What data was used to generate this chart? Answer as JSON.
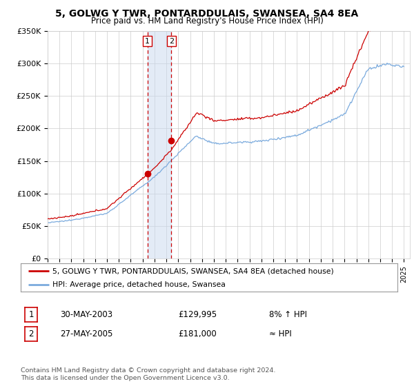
{
  "title": "5, GOLWG Y TWR, PONTARDDULAIS, SWANSEA, SA4 8EA",
  "subtitle": "Price paid vs. HM Land Registry's House Price Index (HPI)",
  "ylim": [
    0,
    350000
  ],
  "yticks": [
    0,
    50000,
    100000,
    150000,
    200000,
    250000,
    300000,
    350000
  ],
  "ytick_labels": [
    "£0",
    "£50K",
    "£100K",
    "£150K",
    "£200K",
    "£250K",
    "£300K",
    "£350K"
  ],
  "xlim_start": 1995.0,
  "xlim_end": 2025.5,
  "sale1_x": 2003.41,
  "sale1_y": 129995,
  "sale2_x": 2005.41,
  "sale2_y": 181000,
  "line_color_red": "#cc0000",
  "line_color_blue": "#7aaadd",
  "legend_line1": "5, GOLWG Y TWR, PONTARDDULAIS, SWANSEA, SA4 8EA (detached house)",
  "legend_line2": "HPI: Average price, detached house, Swansea",
  "table_row1": [
    "1",
    "30-MAY-2003",
    "£129,995",
    "8% ↑ HPI"
  ],
  "table_row2": [
    "2",
    "27-MAY-2005",
    "£181,000",
    "≈ HPI"
  ],
  "footnote": "Contains HM Land Registry data © Crown copyright and database right 2024.\nThis data is licensed under the Open Government Licence v3.0.",
  "background_color": "#ffffff",
  "grid_color": "#cccccc"
}
